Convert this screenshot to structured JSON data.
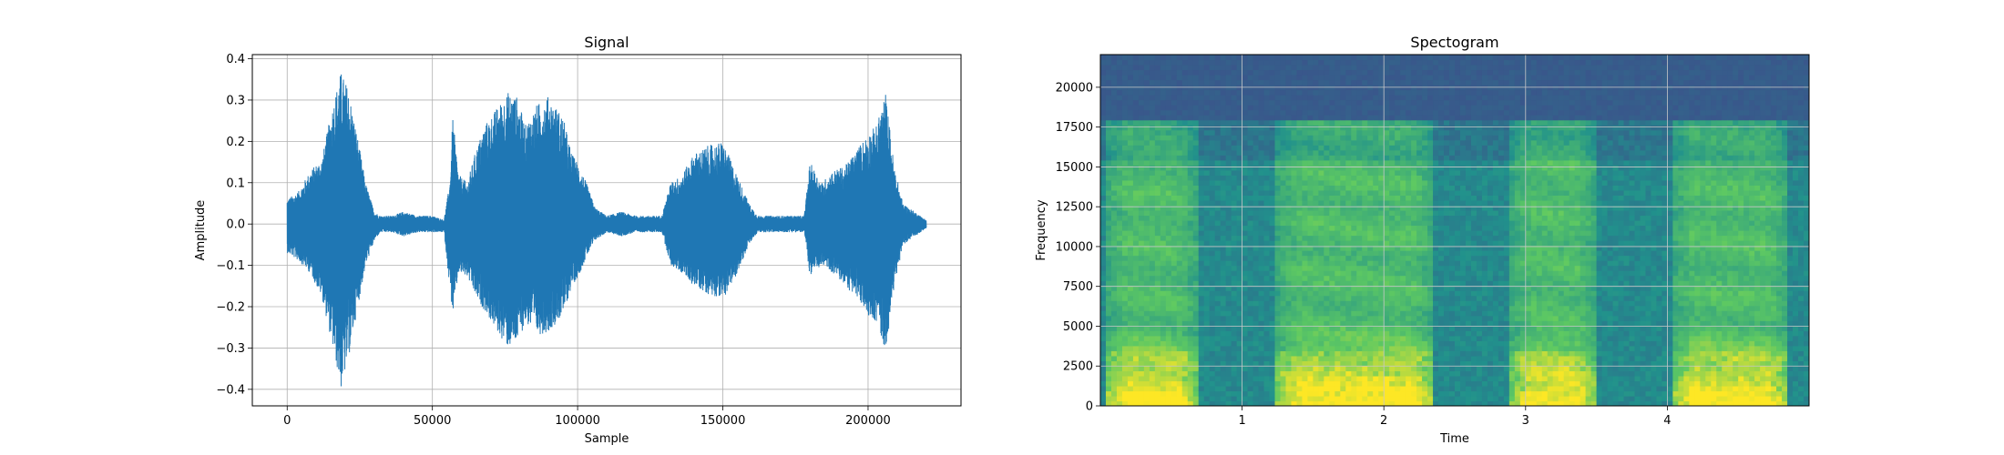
{
  "chart_data": [
    {
      "type": "line",
      "title": "Signal",
      "xlabel": "Sample",
      "ylabel": "Amplitude",
      "xlim": [
        -12000,
        232000
      ],
      "ylim": [
        -0.44,
        0.41
      ],
      "xticks": [
        0,
        50000,
        100000,
        150000,
        200000
      ],
      "xtick_labels": [
        "0",
        "50000",
        "100000",
        "150000",
        "200000"
      ],
      "yticks": [
        -0.4,
        -0.3,
        -0.2,
        -0.1,
        0.0,
        0.1,
        0.2,
        0.3,
        0.4
      ],
      "ytick_labels": [
        "−0.4",
        "−0.3",
        "−0.2",
        "−0.1",
        "0.0",
        "0.1",
        "0.2",
        "0.3",
        "0.4"
      ],
      "grid": true,
      "color": "#1f77b4",
      "envelope": {
        "x": [
          0,
          4000,
          8000,
          12000,
          16000,
          18500,
          21000,
          24000,
          27000,
          30000,
          32000,
          36000,
          40000,
          45000,
          50000,
          54000,
          56000,
          57000,
          59000,
          62000,
          65000,
          68000,
          72000,
          76000,
          79000,
          82000,
          86000,
          90000,
          95000,
          98000,
          100000,
          103000,
          106000,
          110000,
          115000,
          120000,
          125000,
          129000,
          132000,
          136000,
          140000,
          145000,
          150000,
          153000,
          156000,
          159000,
          162000,
          166000,
          170000,
          175000,
          178000,
          180000,
          184000,
          188000,
          192000,
          196000,
          200000,
          203000,
          206000,
          209000,
          212000,
          216000,
          220000
        ],
        "upper": [
          0.06,
          0.08,
          0.13,
          0.16,
          0.3,
          0.37,
          0.33,
          0.22,
          0.1,
          0.03,
          0.02,
          0.02,
          0.03,
          0.02,
          0.02,
          0.01,
          0.1,
          0.26,
          0.12,
          0.1,
          0.18,
          0.24,
          0.28,
          0.32,
          0.31,
          0.24,
          0.29,
          0.31,
          0.26,
          0.17,
          0.15,
          0.1,
          0.04,
          0.02,
          0.03,
          0.02,
          0.02,
          0.02,
          0.1,
          0.12,
          0.17,
          0.19,
          0.2,
          0.15,
          0.1,
          0.05,
          0.02,
          0.02,
          0.02,
          0.02,
          0.02,
          0.15,
          0.1,
          0.13,
          0.14,
          0.18,
          0.22,
          0.24,
          0.32,
          0.14,
          0.05,
          0.03,
          0.01
        ],
        "lower": [
          -0.07,
          -0.09,
          -0.12,
          -0.18,
          -0.31,
          -0.4,
          -0.33,
          -0.21,
          -0.1,
          -0.04,
          -0.02,
          -0.02,
          -0.03,
          -0.02,
          -0.02,
          -0.02,
          -0.16,
          -0.22,
          -0.12,
          -0.13,
          -0.18,
          -0.21,
          -0.26,
          -0.3,
          -0.29,
          -0.24,
          -0.27,
          -0.26,
          -0.22,
          -0.15,
          -0.13,
          -0.08,
          -0.04,
          -0.02,
          -0.03,
          -0.02,
          -0.02,
          -0.02,
          -0.1,
          -0.12,
          -0.15,
          -0.17,
          -0.18,
          -0.15,
          -0.1,
          -0.05,
          -0.02,
          -0.02,
          -0.02,
          -0.02,
          -0.02,
          -0.13,
          -0.1,
          -0.12,
          -0.15,
          -0.18,
          -0.22,
          -0.24,
          -0.31,
          -0.15,
          -0.05,
          -0.03,
          -0.01
        ]
      }
    },
    {
      "type": "heatmap",
      "title": "Spectogram",
      "xlabel": "Time",
      "ylabel": "Frequency",
      "xlim": [
        0,
        5.0
      ],
      "ylim": [
        0,
        22050
      ],
      "xticks": [
        1,
        2,
        3,
        4
      ],
      "xtick_labels": [
        "1",
        "2",
        "3",
        "4"
      ],
      "yticks": [
        0,
        2500,
        5000,
        7500,
        10000,
        12500,
        15000,
        17500,
        20000
      ],
      "ytick_labels": [
        "0",
        "2500",
        "5000",
        "7500",
        "10000",
        "12500",
        "15000",
        "17500",
        "20000"
      ],
      "grid": true,
      "colormap": [
        "#440154",
        "#3b528b",
        "#21918c",
        "#5ec962",
        "#fde725"
      ],
      "voiced_segments": [
        [
          0.05,
          0.68
        ],
        [
          1.25,
          2.35
        ],
        [
          2.9,
          3.5
        ],
        [
          4.05,
          4.85
        ]
      ],
      "high_freq_cutoff": 18000
    }
  ]
}
